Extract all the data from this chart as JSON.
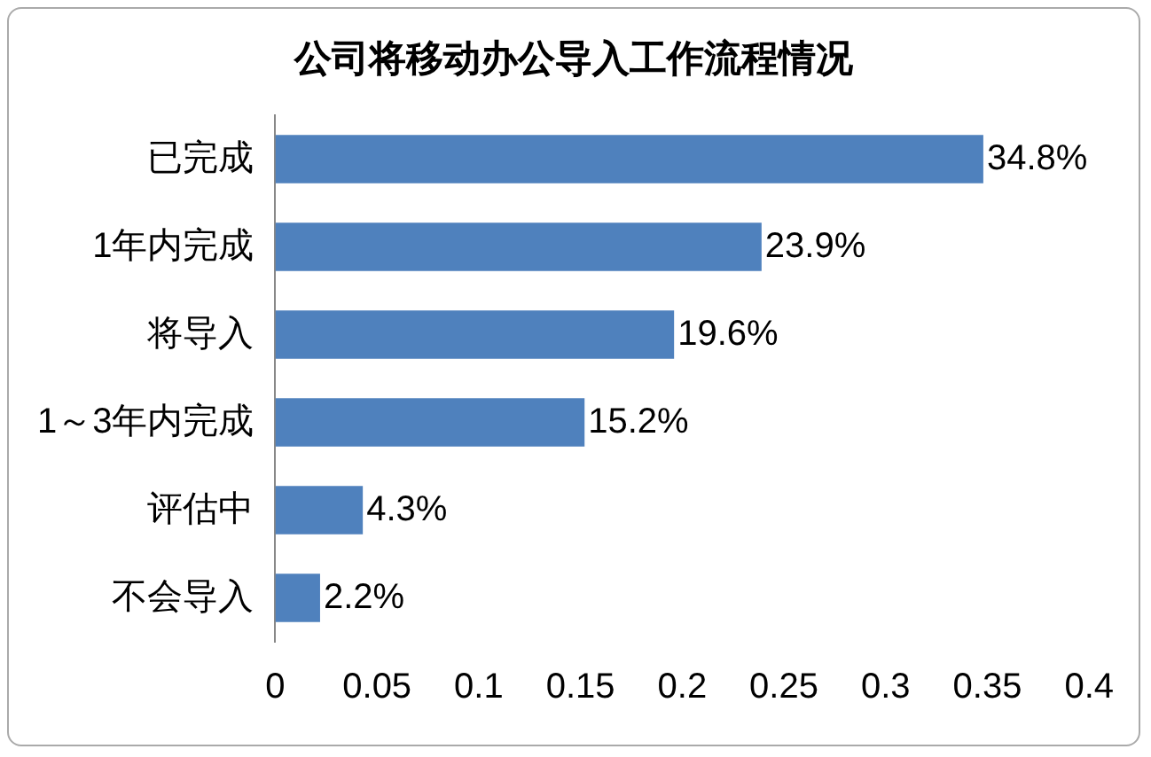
{
  "chart_data": {
    "type": "bar",
    "orientation": "horizontal",
    "title": "公司将移动办公导入工作流程情况",
    "categories": [
      "已完成",
      "1年内完成",
      "将导入",
      "1～3年内完成",
      "评估中",
      "不会导入"
    ],
    "values": [
      0.348,
      0.239,
      0.196,
      0.152,
      0.043,
      0.022
    ],
    "value_labels": [
      "34.8%",
      "23.9%",
      "19.6%",
      "15.2%",
      "4.3%",
      "2.2%"
    ],
    "color": "#4f81bd",
    "xlim": [
      0,
      0.4
    ],
    "xticks": [
      0,
      0.05,
      0.1,
      0.15,
      0.2,
      0.25,
      0.3,
      0.35,
      0.4
    ],
    "grid": false,
    "legend": false
  }
}
